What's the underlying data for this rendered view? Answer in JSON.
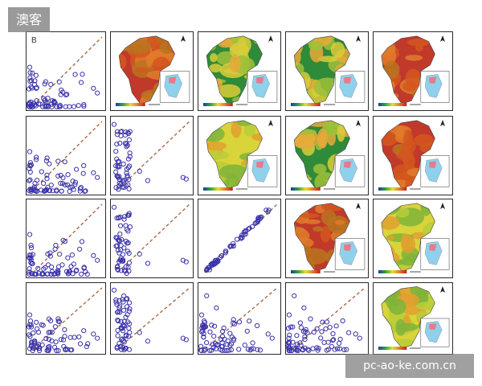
{
  "watermark": {
    "top_left": "澳客",
    "bottom_right": "pc-ao-ke.com.cn"
  },
  "figure": {
    "rows": 4,
    "cols": 5,
    "scatter_color": "#3a33a8",
    "diagonal_color": "#a86a4a",
    "map_color_themes": {
      "red": [
        "#c0392b",
        "#d4571f",
        "#e07b2a",
        "#b8741f"
      ],
      "green": [
        "#2f8a3a",
        "#9fbf3a",
        "#d9cc3a",
        "#e8a93a"
      ],
      "yellow": [
        "#d9d43a",
        "#b8cc3a",
        "#7fb43a",
        "#e0a030"
      ]
    },
    "inset_colors": {
      "land": "#8fd0ec",
      "highlight": "#e87a8a"
    },
    "cells": [
      [
        {
          "type": "scatter",
          "label": "B",
          "pattern": "spread"
        },
        {
          "type": "map",
          "theme": "red",
          "legend_id": "r0c1"
        },
        {
          "type": "map",
          "theme": "green",
          "legend_id": "r0c2"
        },
        {
          "type": "map",
          "theme": "green",
          "legend_id": "r0c3"
        },
        {
          "type": "map",
          "theme": "red",
          "legend_id": "r0c4"
        }
      ],
      [
        {
          "type": "scatter",
          "label": "",
          "pattern": "spread"
        },
        {
          "type": "scatter",
          "label": "",
          "pattern": "vertical"
        },
        {
          "type": "map",
          "theme": "yellow",
          "legend_id": "r1c2"
        },
        {
          "type": "map",
          "theme": "green",
          "legend_id": "r1c3"
        },
        {
          "type": "map",
          "theme": "red",
          "legend_id": "r1c4"
        }
      ],
      [
        {
          "type": "scatter",
          "label": "",
          "pattern": "spread"
        },
        {
          "type": "scatter",
          "label": "",
          "pattern": "vertical"
        },
        {
          "type": "scatter",
          "label": "",
          "pattern": "linear"
        },
        {
          "type": "map",
          "theme": "red",
          "legend_id": "r2c3"
        },
        {
          "type": "map",
          "theme": "yellow",
          "legend_id": "r2c4"
        }
      ],
      [
        {
          "type": "scatter",
          "label": "",
          "pattern": "spread"
        },
        {
          "type": "scatter",
          "label": "",
          "pattern": "vertical"
        },
        {
          "type": "scatter",
          "label": "",
          "pattern": "spread2"
        },
        {
          "type": "scatter",
          "label": "",
          "pattern": "spread2"
        },
        {
          "type": "map",
          "theme": "yellow",
          "legend_id": "r3c4"
        }
      ]
    ]
  }
}
